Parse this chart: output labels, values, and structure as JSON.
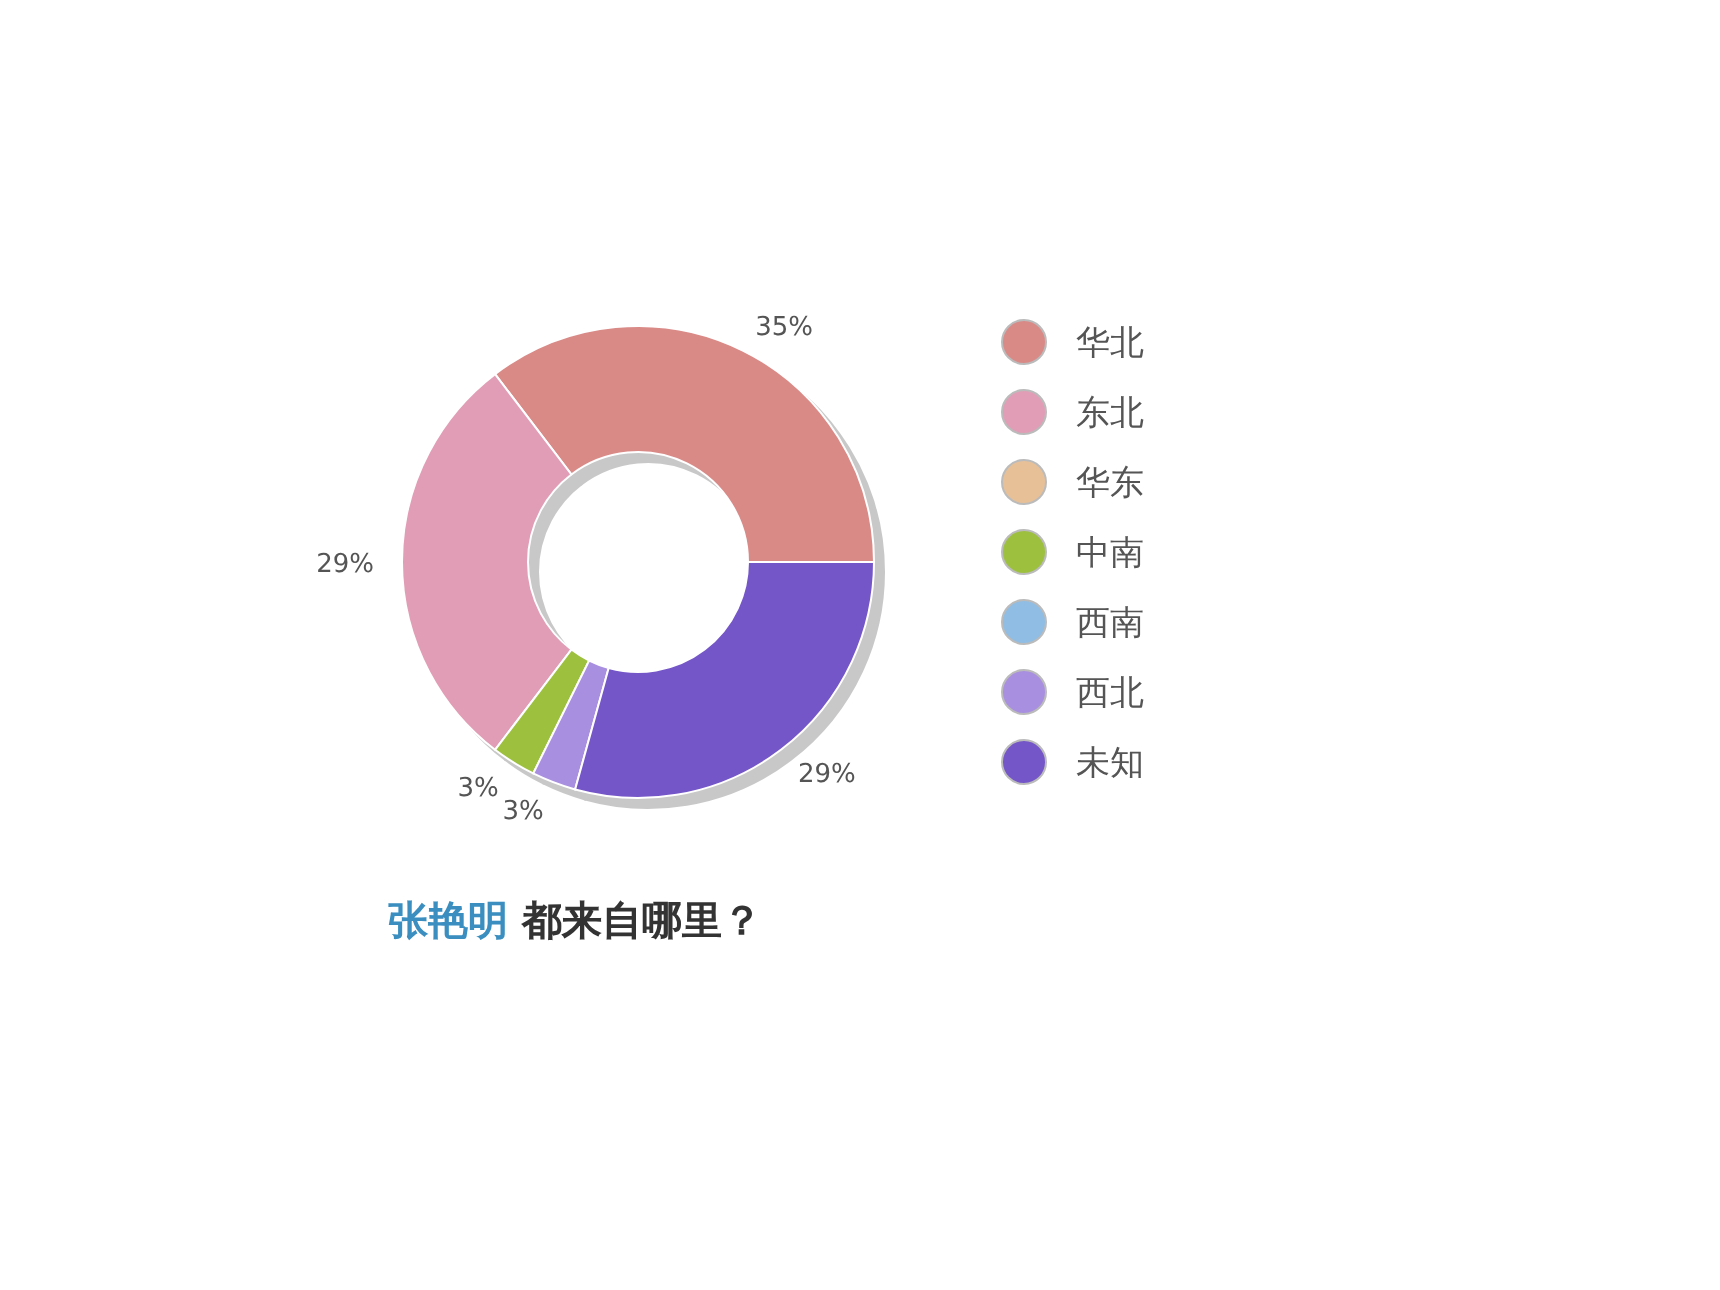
{
  "chart_data": {
    "type": "donut",
    "title": "张艳明 都来自哪里？",
    "categories": [
      "华北",
      "东北",
      "华东",
      "中南",
      "西南",
      "西北",
      "未知"
    ],
    "values": [
      35,
      29,
      0,
      3,
      0,
      3,
      29
    ],
    "colors": [
      "#d98a87",
      "#e19db5",
      "#e8c097",
      "#9dc03f",
      "#8fbde4",
      "#a88fe0",
      "#7456c8"
    ],
    "value_labels": [
      "35%",
      "29%",
      null,
      "3%",
      null,
      "3%",
      "29%"
    ],
    "legend": "right"
  }
}
